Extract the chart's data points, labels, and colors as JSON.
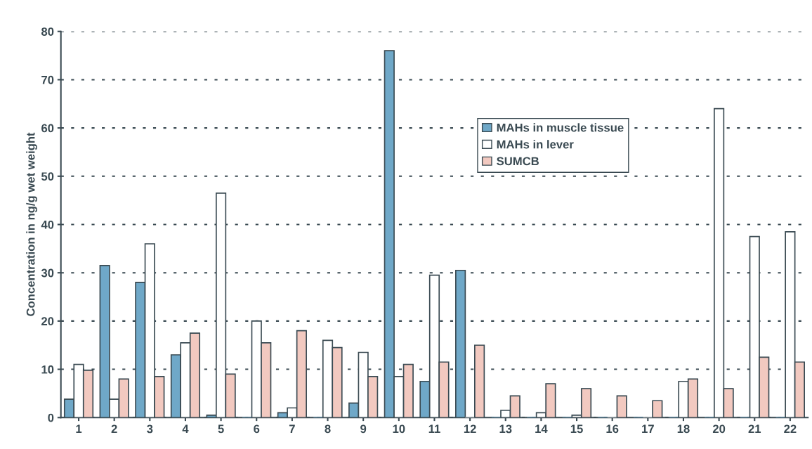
{
  "chart_data": {
    "type": "bar",
    "ylabel": "Concentration in ng/g wet weight",
    "categories": [
      "1",
      "2",
      "3",
      "4",
      "5",
      "6",
      "7",
      "8",
      "9",
      "10",
      "11",
      "12",
      "13",
      "14",
      "15",
      "16",
      "17",
      "18",
      "20",
      "21",
      "22"
    ],
    "series": [
      {
        "name": "MAHs in muscle tissue",
        "color": "#6fa8c8",
        "values": [
          3.8,
          31.5,
          28,
          13,
          0.5,
          0,
          1,
          0,
          3,
          76,
          7.5,
          30.5,
          0,
          0,
          0,
          0,
          0,
          0,
          0,
          0,
          0
        ]
      },
      {
        "name": "MAHs in lever",
        "color": "#ffffff",
        "values": [
          11,
          3.8,
          36,
          15.5,
          46.5,
          20,
          2,
          16,
          13.5,
          8.5,
          29.5,
          0,
          1.5,
          1,
          0.5,
          0,
          0,
          7.5,
          64,
          37.5,
          38.5
        ]
      },
      {
        "name": "SUMCB",
        "color": "#f2c9c0",
        "values": [
          9.8,
          8,
          8.5,
          17.5,
          9,
          15.5,
          18,
          14.5,
          8.5,
          11,
          11.5,
          15,
          4.5,
          7,
          6,
          4.5,
          3.5,
          8,
          6,
          12.5,
          11.5
        ]
      }
    ],
    "ylim": [
      0,
      80
    ],
    "yticks": [
      0,
      10,
      20,
      30,
      40,
      50,
      60,
      70,
      80
    ],
    "grid": "y",
    "legend": "top right"
  }
}
